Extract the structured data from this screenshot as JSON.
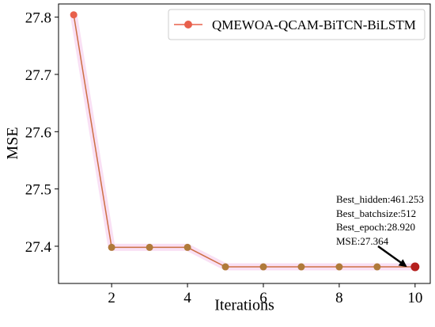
{
  "chart_data": {
    "type": "line",
    "title": "",
    "xlabel": "Iterations",
    "ylabel": "MSE",
    "xlim": [
      0.6,
      10.4
    ],
    "ylim": [
      27.335,
      27.823
    ],
    "xticks": [
      2,
      4,
      6,
      8,
      10
    ],
    "yticks": [
      27.4,
      27.5,
      27.6,
      27.7,
      27.8
    ],
    "x_tick_labels": [
      "2",
      "4",
      "6",
      "8",
      "10"
    ],
    "y_tick_labels": [
      "27.4",
      "27.5",
      "27.6",
      "27.7",
      "27.8"
    ],
    "grid": false,
    "legend_position": "top-right",
    "series": [
      {
        "name": "QMEWOA-QCAM-BiTCN-BiLSTM",
        "color": "#e8604c",
        "x": [
          1,
          2,
          3,
          4,
          5,
          6,
          7,
          8,
          9,
          10
        ],
        "y": [
          27.804,
          27.398,
          27.398,
          27.398,
          27.364,
          27.364,
          27.364,
          27.364,
          27.364,
          27.364
        ]
      }
    ],
    "best_point": {
      "x": 10,
      "y": 27.364,
      "color": "#b5201e"
    },
    "annotation": {
      "lines": [
        "Best_hidden:461.253",
        "Best_batchsize:512",
        "Best_epoch:28.920",
        "MSE:27.364"
      ],
      "target": {
        "x": 10,
        "y": 27.364
      }
    }
  }
}
